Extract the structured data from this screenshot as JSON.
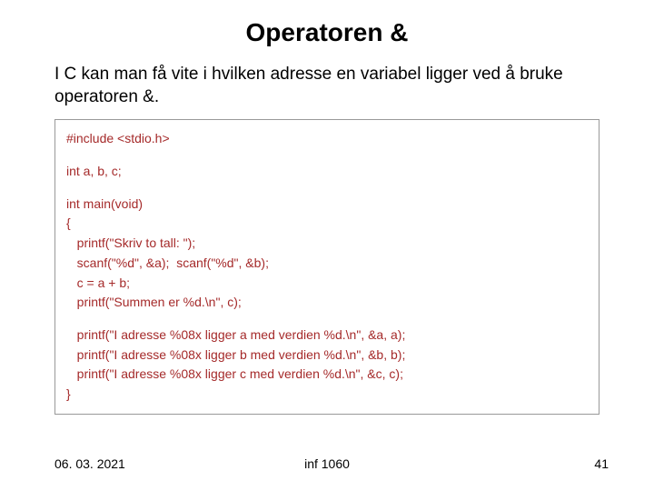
{
  "slide": {
    "title": "Operatoren &",
    "description": "I C kan man få vite i hvilken adresse en variabel ligger ved å bruke operatoren &.",
    "code": {
      "lines": [
        "#include <stdio.h>",
        "",
        "int a, b, c;",
        "",
        "int main(void)",
        "{",
        "   printf(\"Skriv to tall: \");",
        "   scanf(\"%d\", &a);  scanf(\"%d\", &b);",
        "   c = a + b;",
        "   printf(\"Summen er %d.\\n\", c);",
        "",
        "   printf(\"I adresse %08x ligger a med verdien %d.\\n\", &a, a);",
        "   printf(\"I adresse %08x ligger b med verdien %d.\\n\", &b, b);",
        "   printf(\"I adresse %08x ligger c med verdien %d.\\n\", &c, c);",
        "}"
      ],
      "text_color": "#a52a2a",
      "border_color": "#999999",
      "font_size": 14
    },
    "footer": {
      "date": "06. 03. 2021",
      "course": "inf 1060",
      "page": "41"
    },
    "colors": {
      "background": "#ffffff",
      "title_color": "#000000",
      "body_text": "#000000"
    },
    "typography": {
      "title_size": 28,
      "title_weight": "bold",
      "body_size": 19,
      "footer_size": 14
    }
  }
}
